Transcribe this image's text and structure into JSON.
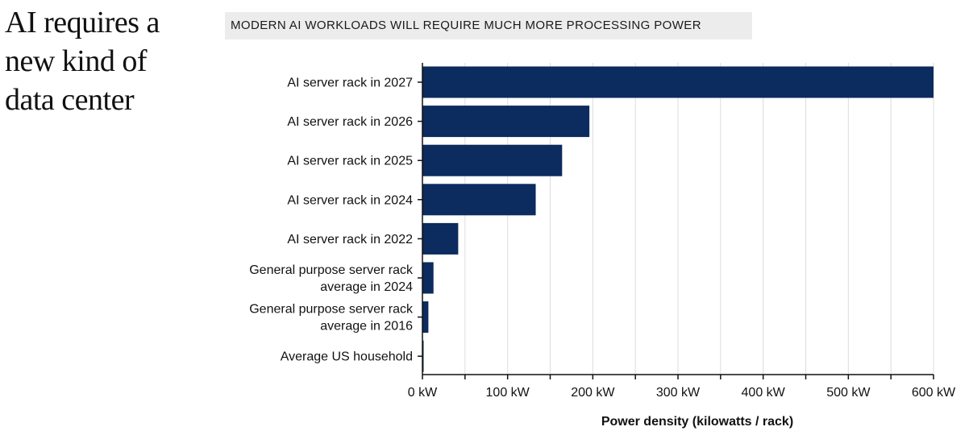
{
  "headline": [
    "AI requires a",
    "new kind of",
    "data center"
  ],
  "chart_data": {
    "type": "bar",
    "orientation": "horizontal",
    "title": "MODERN AI WORKLOADS WILL REQUIRE MUCH MORE PROCESSING POWER",
    "categories": [
      [
        "AI server rack in 2027"
      ],
      [
        "AI server rack in 2026"
      ],
      [
        "AI server rack in 2025"
      ],
      [
        "AI server rack in 2024"
      ],
      [
        "AI server rack in 2022"
      ],
      [
        "General purpose server rack",
        "average in 2024"
      ],
      [
        "General purpose server rack",
        "average in 2016"
      ],
      [
        "Average US household"
      ]
    ],
    "values": [
      600,
      196,
      164,
      133,
      42,
      13,
      7,
      1.2
    ],
    "xlabel": "Power density (kilowatts / rack)",
    "ylabel": "",
    "xlim": [
      0,
      600
    ],
    "xticks": [
      0,
      100,
      200,
      300,
      400,
      500,
      600
    ],
    "xtick_labels": [
      "0 kW",
      "100 kW",
      "200 kW",
      "300 kW",
      "400 kW",
      "500 kW",
      "600 kW"
    ],
    "grid": "vertical",
    "colors": {
      "bar": "#0c2b5e",
      "grid": "#dcdcdc",
      "title_background": "#ececec"
    }
  }
}
